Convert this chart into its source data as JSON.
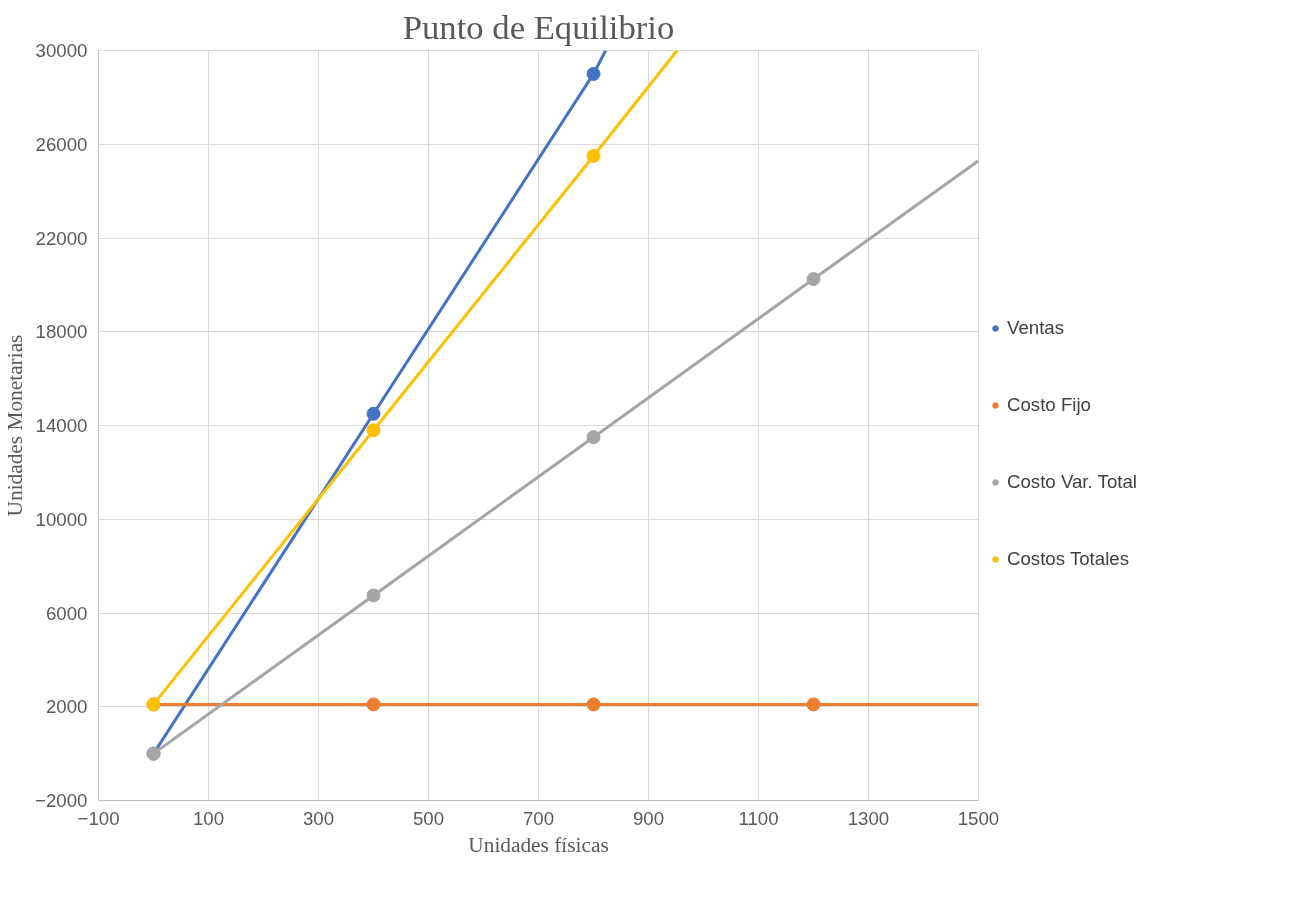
{
  "chart_data": {
    "type": "line",
    "title": "Punto de Equilibrio",
    "xlabel": "Unidades físicas",
    "ylabel": "Unidades Monetarias",
    "xlim": [
      -100,
      1500
    ],
    "xticks": [
      -100,
      100,
      300,
      500,
      700,
      900,
      1100,
      1300,
      1500
    ],
    "ylim": [
      -2000,
      30000
    ],
    "yticks": [
      -2000,
      2000,
      6000,
      10000,
      14000,
      18000,
      22000,
      26000,
      30000
    ],
    "grid": true,
    "legend": "right",
    "marker": "circle",
    "line_style": "solid",
    "series": [
      {
        "name": "Ventas",
        "color": "#4472c4",
        "x": [
          0,
          400,
          800
        ],
        "values": [
          0,
          14500,
          29000
        ]
      },
      {
        "name": "Costo Fijo",
        "color": "#ed7d31",
        "x": [
          0,
          400,
          800,
          1200
        ],
        "values": [
          2100,
          2100,
          2100,
          2100
        ]
      },
      {
        "name": "Costo Var. Total",
        "color": "#a5a5a5",
        "x": [
          0,
          400,
          800,
          1200
        ],
        "values": [
          0,
          6750,
          13500,
          20250
        ]
      },
      {
        "name": "Costos Totales",
        "color": "#ffc000",
        "x": [
          0,
          400,
          800
        ],
        "values": [
          2100,
          13800,
          25500
        ]
      },
      {
        "color": "#4472c4",
        "x": [
          800,
          822
        ],
        "values": [
          29000,
          30000
        ],
        "marker": "none"
      },
      {
        "color": "#ed7d31",
        "x": [
          1200,
          1500
        ],
        "values": [
          2100,
          2100
        ],
        "marker": "none"
      },
      {
        "color": "#a5a5a5",
        "x": [
          1200,
          1500
        ],
        "values": [
          20250,
          25300
        ],
        "marker": "none"
      },
      {
        "color": "#ffc000",
        "x": [
          800,
          952
        ],
        "values": [
          25500,
          30000
        ],
        "marker": "none"
      }
    ]
  }
}
